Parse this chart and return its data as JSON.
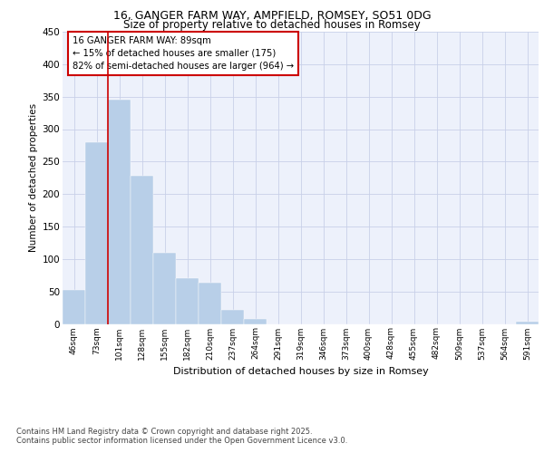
{
  "title1": "16, GANGER FARM WAY, AMPFIELD, ROMSEY, SO51 0DG",
  "title2": "Size of property relative to detached houses in Romsey",
  "xlabel": "Distribution of detached houses by size in Romsey",
  "ylabel": "Number of detached properties",
  "categories": [
    "46sqm",
    "73sqm",
    "101sqm",
    "128sqm",
    "155sqm",
    "182sqm",
    "210sqm",
    "237sqm",
    "264sqm",
    "291sqm",
    "319sqm",
    "346sqm",
    "373sqm",
    "400sqm",
    "428sqm",
    "455sqm",
    "482sqm",
    "509sqm",
    "537sqm",
    "564sqm",
    "591sqm"
  ],
  "values": [
    52,
    280,
    345,
    228,
    110,
    70,
    63,
    22,
    7,
    0,
    0,
    0,
    0,
    0,
    0,
    0,
    0,
    0,
    0,
    0,
    4
  ],
  "bar_color": "#b8cfe8",
  "vline_color": "#cc0000",
  "vline_x": 1.5,
  "annotation_title": "16 GANGER FARM WAY: 89sqm",
  "annotation_line1": "← 15% of detached houses are smaller (175)",
  "annotation_line2": "82% of semi-detached houses are larger (964) →",
  "annotation_box_color": "#cc0000",
  "ylim": [
    0,
    450
  ],
  "yticks": [
    0,
    50,
    100,
    150,
    200,
    250,
    300,
    350,
    400,
    450
  ],
  "footnote1": "Contains HM Land Registry data © Crown copyright and database right 2025.",
  "footnote2": "Contains public sector information licensed under the Open Government Licence v3.0.",
  "background_color": "#edf1fb",
  "grid_color": "#c8d0e8"
}
